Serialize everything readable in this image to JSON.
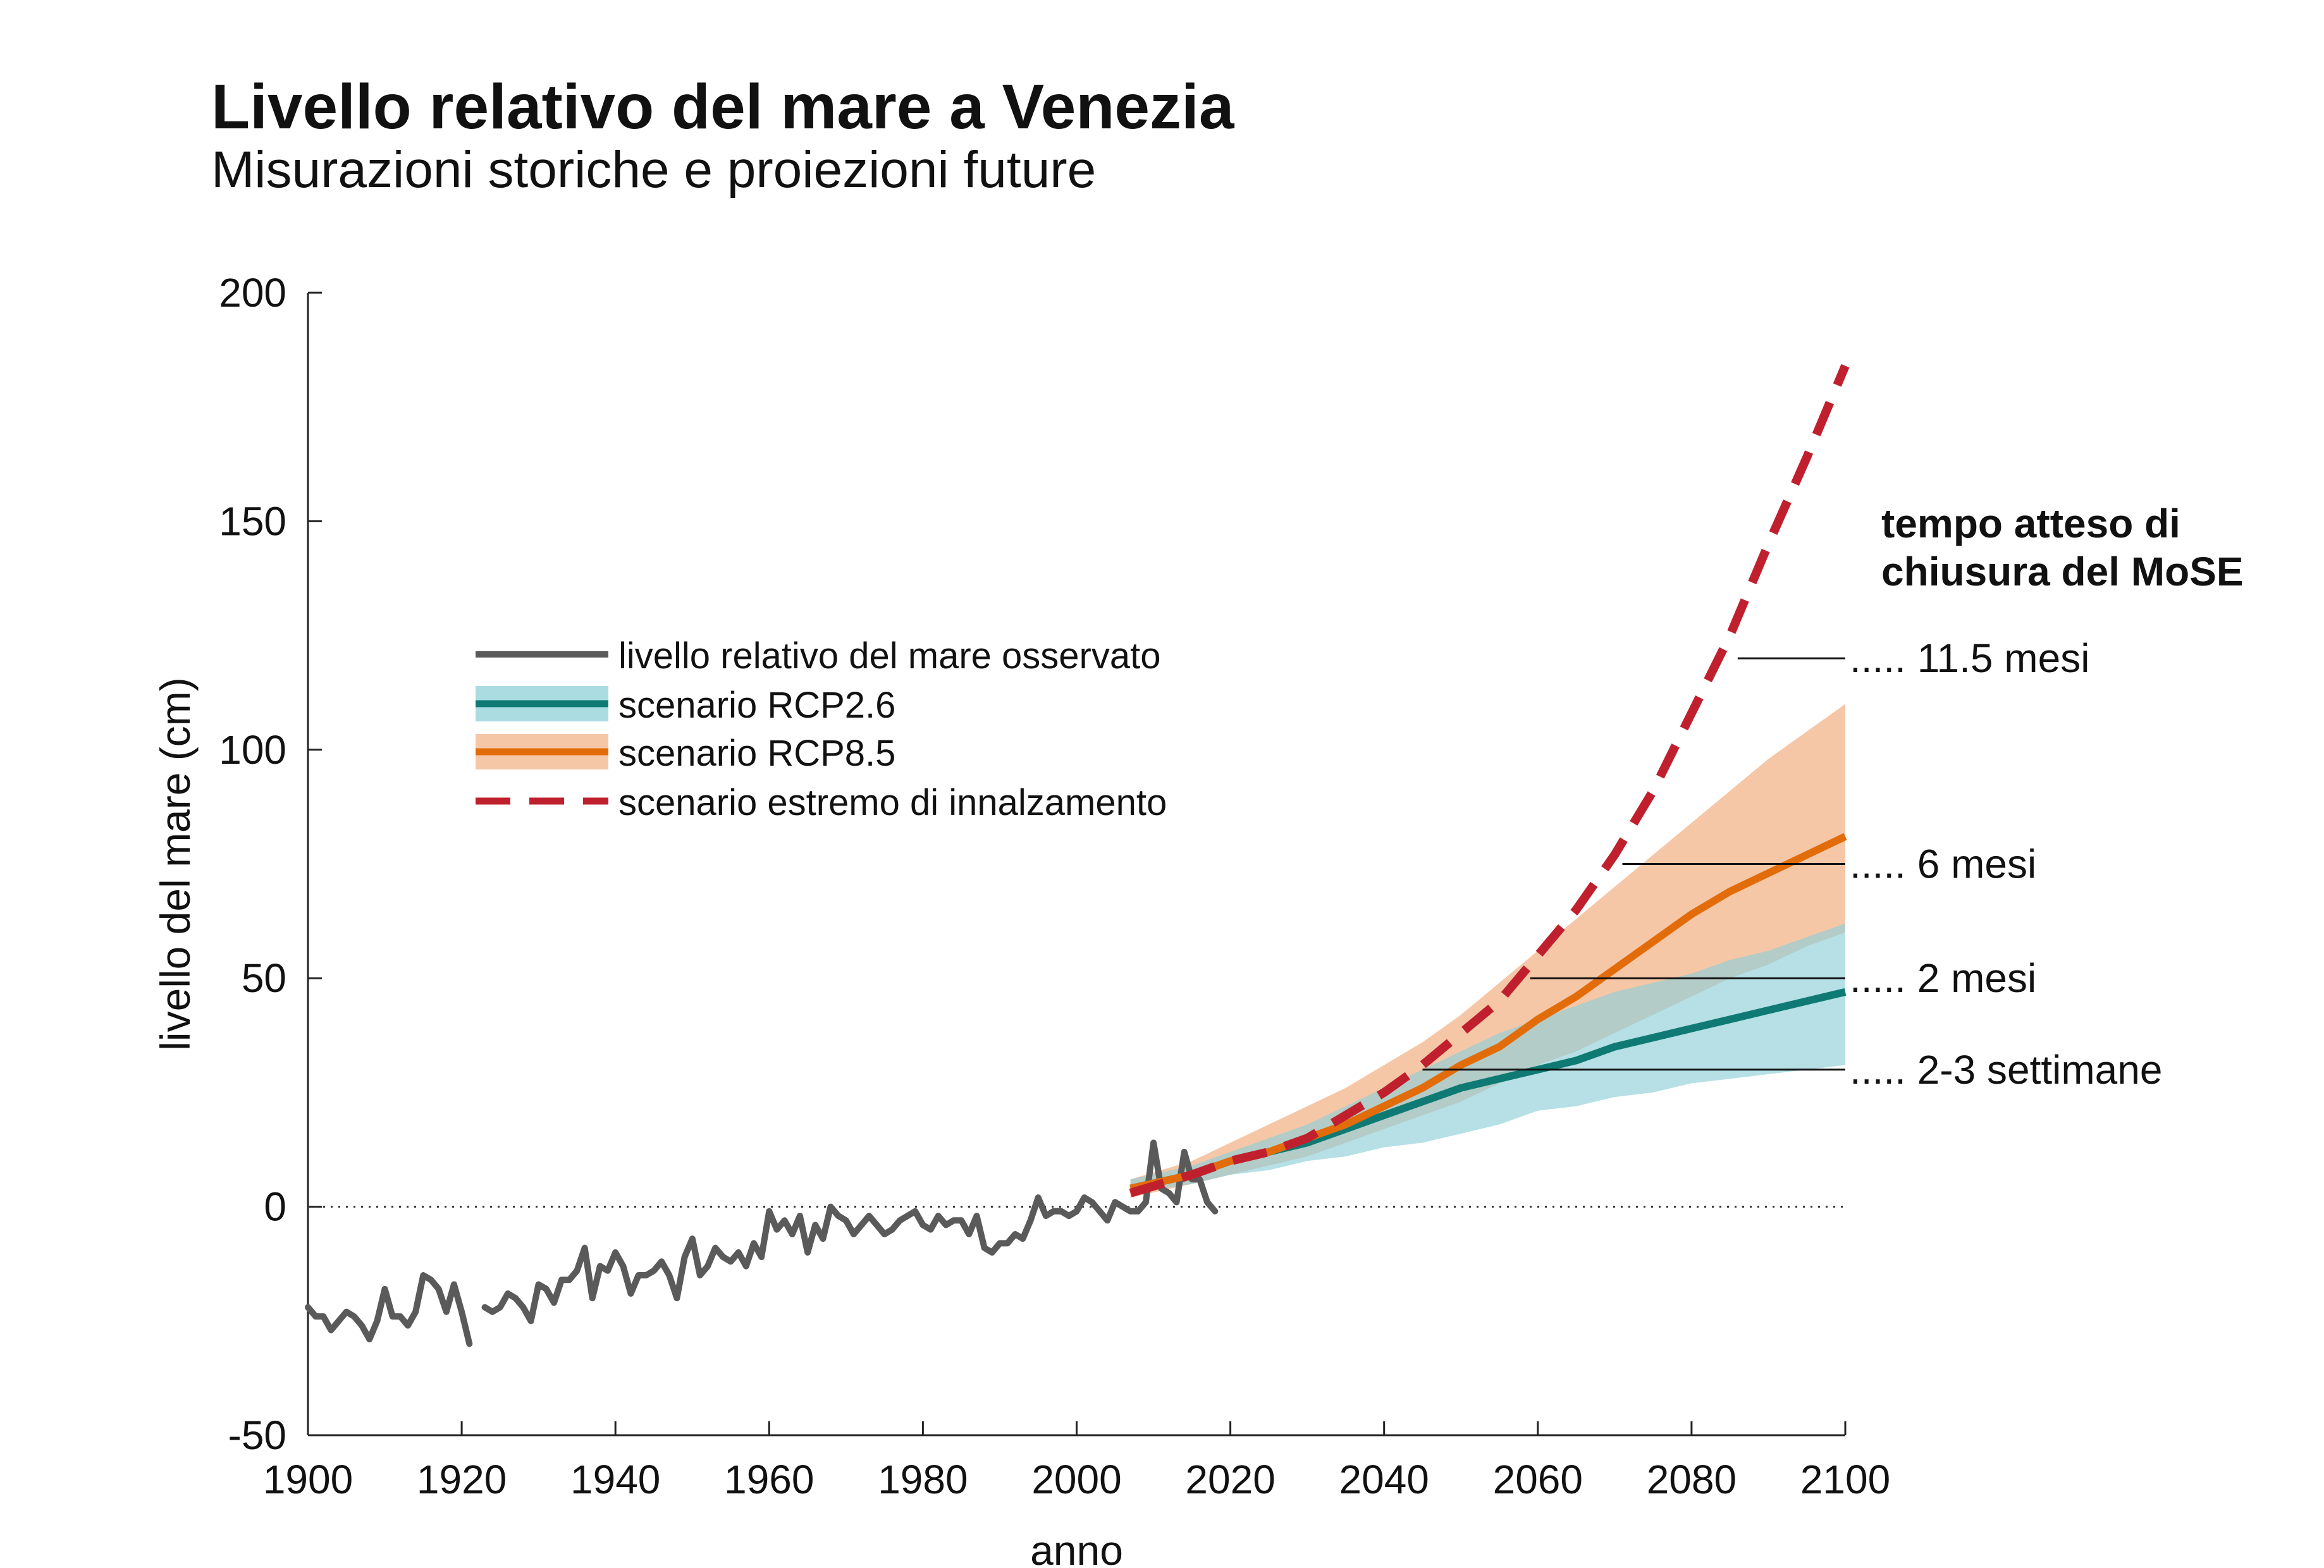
{
  "header": {
    "title": "Livello relativo del mare a Venezia",
    "subtitle": "Misurazioni storiche e proiezioni future"
  },
  "colors": {
    "observed": "#5a5a5a",
    "rcp26": "#0f7a74",
    "rcp26_band": "#8fd0d8",
    "rcp85": "#e36c0a",
    "rcp85_band": "#f2b48a",
    "overlap_band": "#b59a80",
    "extreme": "#c0202e"
  },
  "chart_data": {
    "type": "line",
    "title": "Livello relativo del mare a Venezia",
    "subtitle": "Misurazioni storiche e proiezioni future",
    "xlabel": "anno",
    "ylabel": "livello del mare (cm)",
    "xlim": [
      1900,
      2100
    ],
    "ylim": [
      -50,
      200
    ],
    "xticks": [
      1900,
      1920,
      1940,
      1960,
      1980,
      2000,
      2020,
      2040,
      2060,
      2080,
      2100
    ],
    "yticks": [
      -50,
      0,
      50,
      100,
      150,
      200
    ],
    "zero_line": true,
    "legend": {
      "position": "top-left",
      "entries": [
        {
          "key": "observed",
          "label": "livello relativo del mare osservato"
        },
        {
          "key": "rcp26",
          "label": "scenario RCP2.6"
        },
        {
          "key": "rcp85",
          "label": "scenario RCP8.5"
        },
        {
          "key": "extreme",
          "label": "scenario estremo di innalzamento"
        }
      ]
    },
    "observed": {
      "name": "livello relativo del mare osservato",
      "segments": [
        {
          "x": [
            1900,
            1901,
            1902,
            1903,
            1904,
            1905,
            1906,
            1907,
            1908,
            1909,
            1910,
            1911,
            1912,
            1913,
            1914,
            1915,
            1916,
            1917,
            1918,
            1919,
            1920,
            1921
          ],
          "y": [
            -22,
            -24,
            -24,
            -27,
            -25,
            -23,
            -24,
            -26,
            -29,
            -25,
            -18,
            -24,
            -24,
            -26,
            -23,
            -15,
            -16,
            -18,
            -23,
            -17,
            -23,
            -30
          ]
        },
        {
          "x": [
            1923,
            1924,
            1925,
            1926,
            1927,
            1928,
            1929,
            1930,
            1931,
            1932,
            1933,
            1934,
            1935,
            1936,
            1937,
            1938,
            1939,
            1940,
            1941,
            1942,
            1943,
            1944,
            1945,
            1946,
            1947,
            1948,
            1949,
            1950,
            1951,
            1952,
            1953,
            1954,
            1955,
            1956,
            1957,
            1958,
            1959,
            1960,
            1961,
            1962,
            1963,
            1964,
            1965,
            1966,
            1967,
            1968,
            1969,
            1970,
            1971,
            1972,
            1973,
            1974,
            1975,
            1976,
            1977,
            1978,
            1979,
            1980,
            1981,
            1982,
            1983,
            1984,
            1985,
            1986,
            1987,
            1988,
            1989,
            1990,
            1991,
            1992,
            1993,
            1994,
            1995,
            1996,
            1997,
            1998,
            1999,
            2000,
            2001,
            2002,
            2003,
            2004,
            2005,
            2006,
            2007,
            2008,
            2009,
            2010,
            2011,
            2012,
            2013,
            2014,
            2015,
            2016,
            2017,
            2018
          ],
          "y": [
            -22,
            -23,
            -22,
            -19,
            -20,
            -22,
            -25,
            -17,
            -18,
            -21,
            -16,
            -16,
            -14,
            -9,
            -20,
            -13,
            -14,
            -10,
            -13,
            -19,
            -15,
            -15,
            -14,
            -12,
            -15,
            -20,
            -11,
            -7,
            -15,
            -13,
            -9,
            -11,
            -12,
            -10,
            -13,
            -8,
            -11,
            -1,
            -5,
            -3,
            -6,
            -2,
            -10,
            -4,
            -7,
            0,
            -2,
            -3,
            -6,
            -4,
            -2,
            -4,
            -6,
            -5,
            -3,
            -2,
            -1,
            -4,
            -5,
            -2,
            -4,
            -3,
            -3,
            -6,
            -2,
            -9,
            -10,
            -8,
            -8,
            -6,
            -7,
            -3,
            2,
            -2,
            -1,
            -1,
            -2,
            -1,
            2,
            1,
            -1,
            -3,
            1,
            0,
            -1,
            -1,
            1,
            14,
            4,
            3,
            1,
            12,
            6,
            6,
            1,
            -1
          ]
        }
      ]
    },
    "rcp26": {
      "name": "scenario RCP2.6",
      "x": [
        2007,
        2015,
        2020,
        2025,
        2030,
        2035,
        2040,
        2045,
        2050,
        2055,
        2060,
        2065,
        2070,
        2075,
        2080,
        2085,
        2090,
        2095,
        2100
      ],
      "y": [
        4,
        7,
        10,
        12,
        14,
        17,
        20,
        23,
        26,
        28,
        30,
        32,
        35,
        37,
        39,
        41,
        43,
        45,
        47
      ],
      "lower": [
        3,
        5,
        7,
        8,
        10,
        11,
        13,
        14,
        16,
        18,
        21,
        22,
        24,
        25,
        27,
        28,
        29,
        30,
        31
      ],
      "upper": [
        6,
        9,
        12,
        15,
        18,
        22,
        26,
        30,
        34,
        38,
        41,
        44,
        47,
        49,
        51,
        54,
        56,
        59,
        62
      ]
    },
    "rcp85": {
      "name": "scenario RCP8.5",
      "x": [
        2007,
        2015,
        2020,
        2025,
        2030,
        2035,
        2040,
        2045,
        2050,
        2055,
        2060,
        2065,
        2070,
        2075,
        2080,
        2085,
        2090,
        2095,
        2100
      ],
      "y": [
        4,
        7,
        10,
        12,
        15,
        18,
        22,
        26,
        31,
        35,
        41,
        46,
        52,
        58,
        64,
        69,
        73,
        77,
        81
      ],
      "lower": [
        2,
        5,
        7,
        9,
        11,
        14,
        17,
        20,
        23,
        27,
        31,
        34,
        38,
        42,
        46,
        50,
        53,
        57,
        60
      ],
      "upper": [
        6,
        10,
        14,
        18,
        22,
        26,
        31,
        36,
        42,
        49,
        56,
        63,
        70,
        77,
        84,
        91,
        98,
        104,
        110
      ]
    },
    "extreme": {
      "name": "scenario estremo di innalzamento",
      "x": [
        2007,
        2015,
        2020,
        2025,
        2030,
        2035,
        2040,
        2045,
        2050,
        2055,
        2060,
        2065,
        2070,
        2075,
        2080,
        2085,
        2090,
        2095,
        2100
      ],
      "y": [
        3,
        7,
        10,
        12,
        15,
        20,
        25,
        31,
        38,
        45,
        55,
        65,
        77,
        91,
        108,
        125,
        145,
        164,
        184
      ]
    },
    "closure_annotations": {
      "heading": [
        "tempo atteso di",
        "chiusura del MoSE"
      ],
      "prefix": ".....",
      "levels": [
        {
          "label": "11.5 mesi",
          "level": 120,
          "start_year": 2086
        },
        {
          "label": "6 mesi",
          "level": 75,
          "start_year": 2071
        },
        {
          "label": "2 mesi",
          "level": 50,
          "start_year": 2059
        },
        {
          "label": "2-3 settimane",
          "level": 30,
          "start_year": 2045
        }
      ]
    }
  }
}
